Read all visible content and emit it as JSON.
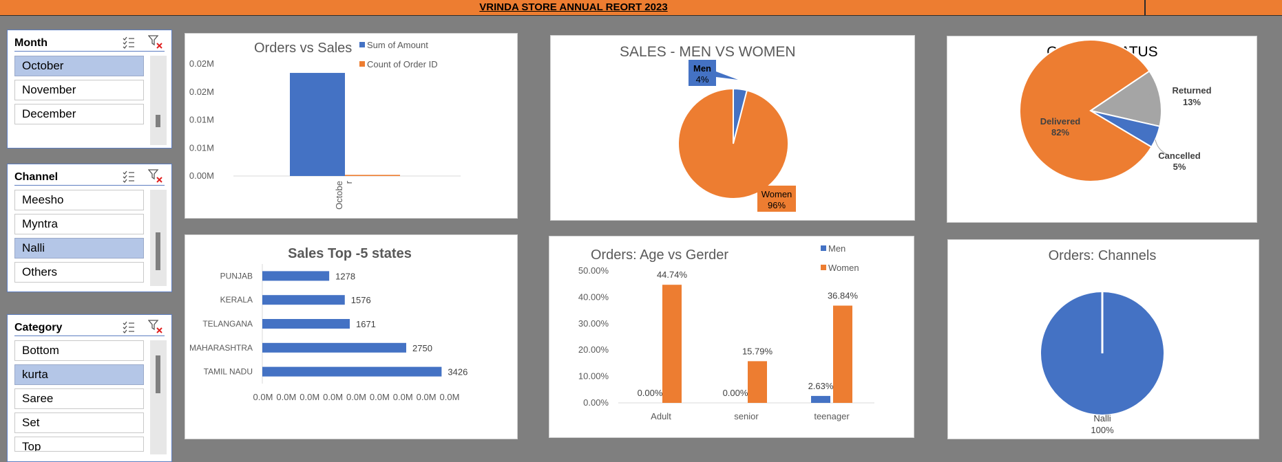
{
  "header": {
    "title": "VRINDA STORE ANNUAL REORT 2023"
  },
  "slicers": [
    {
      "title": "Month",
      "items": [
        {
          "label": "October",
          "selected": true
        },
        {
          "label": "November",
          "selected": false
        },
        {
          "label": "December",
          "selected": false
        }
      ]
    },
    {
      "title": "Channel",
      "items": [
        {
          "label": "Meesho",
          "selected": false
        },
        {
          "label": "Myntra",
          "selected": false
        },
        {
          "label": "Nalli",
          "selected": true
        },
        {
          "label": "Others",
          "selected": false
        }
      ]
    },
    {
      "title": "Category",
      "items": [
        {
          "label": "Bottom",
          "selected": false
        },
        {
          "label": "kurta",
          "selected": true
        },
        {
          "label": "Saree",
          "selected": false
        },
        {
          "label": "Set",
          "selected": false
        },
        {
          "label": "Top",
          "selected": false
        }
      ]
    }
  ],
  "colors": {
    "blue": "#4472c4",
    "orange": "#ed7d31",
    "gray": "#a5a5a5",
    "slicer_selected": "#b4c6e7"
  },
  "chart_data": [
    {
      "id": "orders-vs-sales",
      "type": "bar",
      "title": "Orders vs Sales",
      "categories": [
        "October"
      ],
      "category_label_lines": [
        "Octobe",
        "r"
      ],
      "series": [
        {
          "name": "Sum of Amount",
          "values": [
            0.0184
          ],
          "color": "#4472c4"
        },
        {
          "name": "Count of Order ID",
          "values": [
            0.0002
          ],
          "color": "#ed7d31"
        }
      ],
      "yticks": [
        "0.02M",
        "0.02M",
        "0.01M",
        "0.01M",
        "0.00M"
      ],
      "ylim": [
        0,
        0.02
      ],
      "legend": "top-right"
    },
    {
      "id": "sales-men-women",
      "type": "pie",
      "title": "SALES - MEN VS WOMEN",
      "slices": [
        {
          "label": "Men",
          "value": 4,
          "pct_label": "4%",
          "color": "#4472c4"
        },
        {
          "label": "Women",
          "value": 96,
          "pct_label": "96%",
          "color": "#ed7d31"
        }
      ]
    },
    {
      "id": "order-status",
      "type": "pie",
      "title": "ORDER STATUS",
      "slices": [
        {
          "label": "Returned",
          "value": 13,
          "pct_label": "13%",
          "color": "#a5a5a5"
        },
        {
          "label": "Cancelled",
          "value": 5,
          "pct_label": "5%",
          "color": "#4472c4"
        },
        {
          "label": "Delivered",
          "value": 82,
          "pct_label": "82%",
          "color": "#ed7d31"
        }
      ]
    },
    {
      "id": "top-states",
      "type": "bar",
      "orientation": "horizontal",
      "title": "Sales Top -5 states",
      "categories": [
        "PUNJAB",
        "KERALA",
        "TELANGANA",
        "MAHARASHTRA",
        "TAMIL NADU"
      ],
      "values": [
        1278,
        1576,
        1671,
        2750,
        3426
      ],
      "value_labels": [
        "1278",
        "1576",
        "1671",
        "2750",
        "3426"
      ],
      "xticks": [
        "0.0M",
        "0.0M",
        "0.0M",
        "0.0M",
        "0.0M",
        "0.0M",
        "0.0M",
        "0.0M",
        "0.0M"
      ],
      "xlim": [
        0,
        4000
      ],
      "color": "#4472c4"
    },
    {
      "id": "age-vs-gender",
      "type": "bar",
      "title": "Orders: Age vs Gerder",
      "categories": [
        "Adult",
        "senior",
        "teenager"
      ],
      "series": [
        {
          "name": "Men",
          "values": [
            0.0,
            0.0,
            2.63
          ],
          "labels": [
            "0.00%",
            "0.00%",
            "2.63%"
          ],
          "color": "#4472c4"
        },
        {
          "name": "Women",
          "values": [
            44.74,
            15.79,
            36.84
          ],
          "labels": [
            "44.74%",
            "15.79%",
            "36.84%"
          ],
          "color": "#ed7d31"
        }
      ],
      "yticks": [
        "50.00%",
        "40.00%",
        "30.00%",
        "20.00%",
        "10.00%",
        "0.00%"
      ],
      "ylim": [
        0,
        50
      ],
      "legend": "top-right"
    },
    {
      "id": "orders-channels",
      "type": "pie",
      "title": "Orders: Channels",
      "slices": [
        {
          "label": "Nalli",
          "value": 100,
          "pct_label": "100%",
          "color": "#4472c4"
        }
      ]
    }
  ]
}
